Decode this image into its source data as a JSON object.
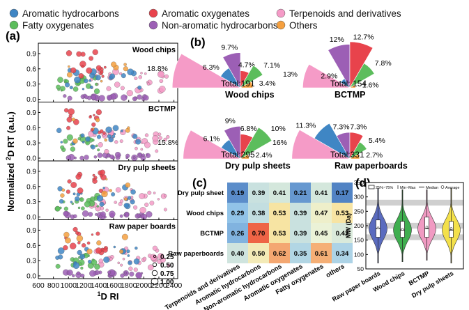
{
  "legend": {
    "items": [
      {
        "name": "Aromatic hydrocarbons",
        "color": "#3f86c4"
      },
      {
        "name": "Aromatic oxygenates",
        "color": "#e8434c"
      },
      {
        "name": "Terpenoids and derivatives",
        "color": "#f59bc7"
      },
      {
        "name": "Fatty oxygenates",
        "color": "#5cbd5c"
      },
      {
        "name": "Non-aromatic hydrocarbons",
        "color": "#9c5fb5"
      },
      {
        "name": "Others",
        "color": "#f5a03f"
      }
    ]
  },
  "panel_a": {
    "label": "(a)",
    "xlabel_main": "D RI",
    "xlabel_sup": "1",
    "ylabel_pre": "Normalized ",
    "ylabel_sup": "2",
    "ylabel_post": "D RT (a.u.)",
    "xticks": [
      600,
      800,
      1000,
      1200,
      1400,
      1600,
      1800,
      2000,
      2200,
      2400
    ],
    "yticks": [
      0.0,
      0.3,
      0.6,
      0.9
    ],
    "ylim": [
      0,
      1.05
    ],
    "xlim": [
      600,
      2450
    ],
    "subpanels": [
      "Wood chips",
      "BCTMP",
      "Dry pulp sheets",
      "Raw paper boards"
    ],
    "size_legend": [
      "0.25",
      "0.50",
      "0.75",
      "1.00"
    ]
  },
  "panel_b": {
    "label": "(b)",
    "charts": [
      {
        "title": "Wood chips",
        "total": "Total:191",
        "labels": [
          "18.8%",
          "6.3%",
          "9.7%",
          "4.7%",
          "7.1%",
          "3.4%"
        ],
        "values": [
          18.8,
          6.3,
          9.7,
          4.7,
          7.1,
          3.4
        ]
      },
      {
        "title": "BCTMP",
        "total": "Total: 154",
        "labels": [
          "13%",
          "2.9%",
          "12%",
          "12.7%",
          "7.8%",
          "1.6%"
        ],
        "values": [
          13,
          2.9,
          12,
          12.7,
          7.8,
          1.6
        ]
      },
      {
        "title": "Dry pulp sheets",
        "total": "Total:295",
        "labels": [
          "15.8%",
          "6.1%",
          "9%",
          "6.8%",
          "10%",
          "2.4%"
        ],
        "values": [
          15.8,
          6.1,
          9,
          6.8,
          10,
          2.4
        ]
      },
      {
        "title": "Raw paperboards",
        "total": "Total:331",
        "labels": [
          "16%",
          "11.3%",
          "7.3%",
          "7.3%",
          "5.4%",
          "2.7%"
        ],
        "values": [
          16,
          11.3,
          7.3,
          7.3,
          5.4,
          2.7
        ]
      }
    ]
  },
  "panel_c": {
    "label": "(c)",
    "rows": [
      "Dry pulp sheet",
      "Wood chips",
      "BCTMP",
      "Raw paperboards"
    ],
    "cols": [
      "Terpenoids and derivatives",
      "Aromatic hydrocarbons",
      "Non-aromatic hydrocarbons",
      "Aromatic oxygenates",
      "Fatty oxygenates",
      "others"
    ],
    "values": [
      [
        "0.19",
        "0.39",
        "0.41",
        "0.21",
        "0.41",
        "0.17"
      ],
      [
        "0.29",
        "0.38",
        "0.53",
        "0.39",
        "0.47",
        "0.53"
      ],
      [
        "0.26",
        "0.70",
        "0.53",
        "0.39",
        "0.45",
        "0.42"
      ],
      [
        "0.40",
        "0.50",
        "0.62",
        "0.35",
        "0.61",
        "0.34"
      ]
    ]
  },
  "panel_d": {
    "label": "(d)",
    "ylabel": "MW (Da)",
    "yticks": [
      50,
      100,
      150,
      200,
      250,
      300,
      350
    ],
    "ylim": [
      50,
      350
    ],
    "legend": [
      "25%~75%",
      "Min~Max",
      "Median",
      "Average"
    ],
    "groups": [
      {
        "name": "Raw paper boards",
        "color": "#5a6bbf",
        "min": 70,
        "q1": 160,
        "median": 190,
        "q3": 220,
        "max": 330,
        "mean": 192
      },
      {
        "name": "Wood chips",
        "color": "#3fae4f",
        "min": 75,
        "q1": 160,
        "median": 185,
        "q3": 215,
        "max": 325,
        "mean": 188
      },
      {
        "name": "BCTMP",
        "color": "#f09ac2",
        "min": 80,
        "q1": 160,
        "median": 190,
        "q3": 230,
        "max": 325,
        "mean": 195
      },
      {
        "name": "Dry pulp sheets",
        "color": "#f3e04a",
        "min": 70,
        "q1": 160,
        "median": 185,
        "q3": 215,
        "max": 330,
        "mean": 190
      }
    ]
  },
  "chart_data": [
    {
      "type": "scatter",
      "title": "",
      "xlabel": "1D RI",
      "ylabel": "Normalized 2D RT (a.u.)",
      "xlim": [
        600,
        2450
      ],
      "ylim": [
        0,
        1.05
      ],
      "series": [
        "Aromatic hydrocarbons",
        "Aromatic oxygenates",
        "Terpenoids and derivatives",
        "Fatty oxygenates",
        "Non-aromatic hydrocarbons",
        "Others"
      ],
      "panels": [
        "Wood chips",
        "BCTMP",
        "Dry pulp sheets",
        "Raw paper boards"
      ]
    },
    {
      "type": "pie",
      "series": [
        "Terpenoids and derivatives",
        "Aromatic hydrocarbons",
        "Non-aromatic hydrocarbons",
        "Aromatic oxygenates",
        "Fatty oxygenates",
        "Others"
      ],
      "charts": [
        {
          "title": "Wood chips",
          "values": [
            18.8,
            6.3,
            9.7,
            4.7,
            7.1,
            3.4
          ]
        },
        {
          "title": "BCTMP",
          "values": [
            13,
            2.9,
            12,
            12.7,
            7.8,
            1.6
          ]
        },
        {
          "title": "Dry pulp sheets",
          "values": [
            15.8,
            6.1,
            9,
            6.8,
            10,
            2.4
          ]
        },
        {
          "title": "Raw paperboards",
          "values": [
            16,
            11.3,
            7.3,
            7.3,
            5.4,
            2.7
          ]
        }
      ]
    },
    {
      "type": "heatmap",
      "rows": [
        "Dry pulp sheet",
        "Wood chips",
        "BCTMP",
        "Raw paperboards"
      ],
      "cols": [
        "Terpenoids and derivatives",
        "Aromatic hydrocarbons",
        "Non-aromatic hydrocarbons",
        "Aromatic oxygenates",
        "Fatty oxygenates",
        "others"
      ],
      "values": [
        [
          0.19,
          0.39,
          0.41,
          0.21,
          0.41,
          0.17
        ],
        [
          0.29,
          0.38,
          0.53,
          0.39,
          0.47,
          0.53
        ],
        [
          0.26,
          0.7,
          0.53,
          0.39,
          0.45,
          0.42
        ],
        [
          0.4,
          0.5,
          0.62,
          0.35,
          0.61,
          0.34
        ]
      ]
    },
    {
      "type": "violin",
      "ylabel": "MW (Da)",
      "ylim": [
        50,
        350
      ],
      "categories": [
        "Raw paper boards",
        "Wood chips",
        "BCTMP",
        "Dry pulp sheets"
      ],
      "median": [
        190,
        185,
        190,
        185
      ],
      "q1": [
        160,
        160,
        160,
        160
      ],
      "q3": [
        220,
        215,
        230,
        215
      ],
      "min": [
        70,
        75,
        80,
        70
      ],
      "max": [
        330,
        325,
        325,
        330
      ]
    }
  ]
}
